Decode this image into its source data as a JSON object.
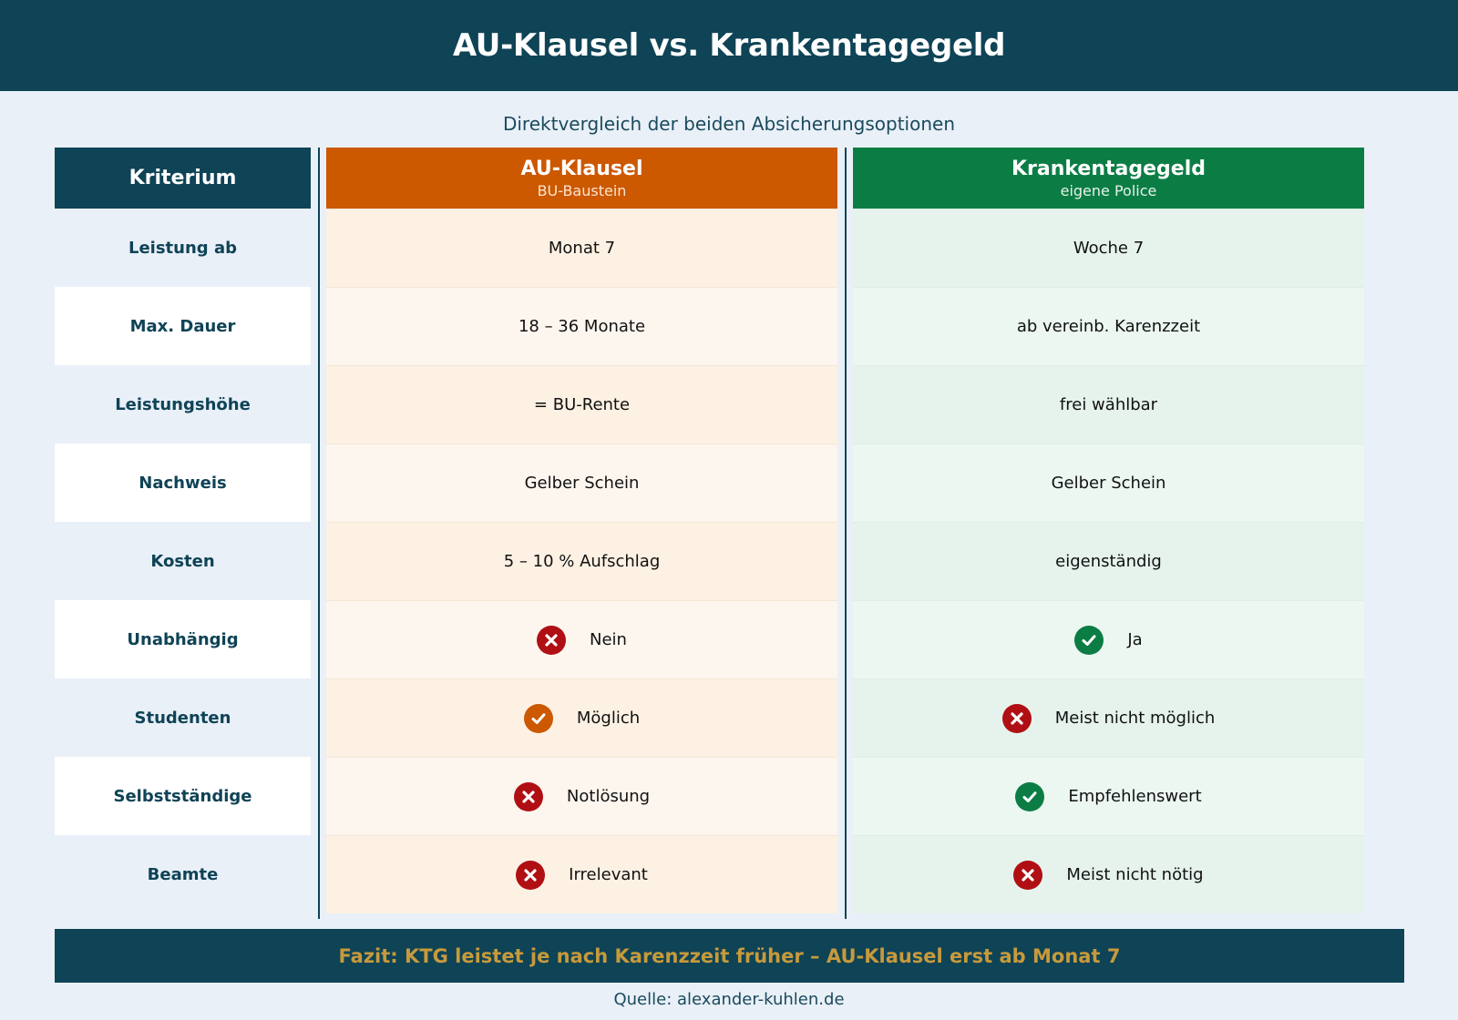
{
  "title": "AU-Klausel vs. Krankentagegeld",
  "subtitle": "Direktvergleich der beiden Absicherungsoptionen",
  "colors": {
    "navy": "#0f4356",
    "au_orange": "#cc5800",
    "ktg_green": "#0b7d44",
    "no_red": "#b00f14",
    "fazit_gold": "#c79a3c"
  },
  "columns": {
    "criterion": {
      "label": "Kriterium"
    },
    "au": {
      "label": "AU-Klausel",
      "sub": "BU-Baustein"
    },
    "ktg": {
      "label": "Krankentagegeld",
      "sub": "eigene Police"
    }
  },
  "rows": [
    {
      "criterion": "Leistung ab",
      "au": {
        "text": "Monat 7",
        "icon": ""
      },
      "ktg": {
        "text": "Woche 7",
        "icon": ""
      }
    },
    {
      "criterion": "Max. Dauer",
      "au": {
        "text": "18 – 36 Monate",
        "icon": ""
      },
      "ktg": {
        "text": "ab vereinb. Karenzzeit",
        "icon": ""
      }
    },
    {
      "criterion": "Leistungshöhe",
      "au": {
        "text": "= BU-Rente",
        "icon": ""
      },
      "ktg": {
        "text": "frei wählbar",
        "icon": ""
      }
    },
    {
      "criterion": "Nachweis",
      "au": {
        "text": "Gelber Schein",
        "icon": ""
      },
      "ktg": {
        "text": "Gelber Schein",
        "icon": ""
      }
    },
    {
      "criterion": "Kosten",
      "au": {
        "text": "5 – 10 % Aufschlag",
        "icon": ""
      },
      "ktg": {
        "text": "eigenständig",
        "icon": ""
      }
    },
    {
      "criterion": "Unabhängig",
      "au": {
        "text": "Nein",
        "icon": "cross-red"
      },
      "ktg": {
        "text": "Ja",
        "icon": "check-green"
      }
    },
    {
      "criterion": "Studenten",
      "au": {
        "text": "Möglich",
        "icon": "check-orange"
      },
      "ktg": {
        "text": "Meist nicht möglich",
        "icon": "cross-red"
      }
    },
    {
      "criterion": "Selbstständige",
      "au": {
        "text": "Notlösung",
        "icon": "cross-red"
      },
      "ktg": {
        "text": "Empfehlenswert",
        "icon": "check-green"
      }
    },
    {
      "criterion": "Beamte",
      "au": {
        "text": "Irrelevant",
        "icon": "cross-red"
      },
      "ktg": {
        "text": "Meist nicht nötig",
        "icon": "cross-red"
      }
    }
  ],
  "fazit": "Fazit: KTG leistet je nach Karenzzeit früher – AU-Klausel erst ab Monat 7",
  "source": "Quelle: alexander-kuhlen.de"
}
